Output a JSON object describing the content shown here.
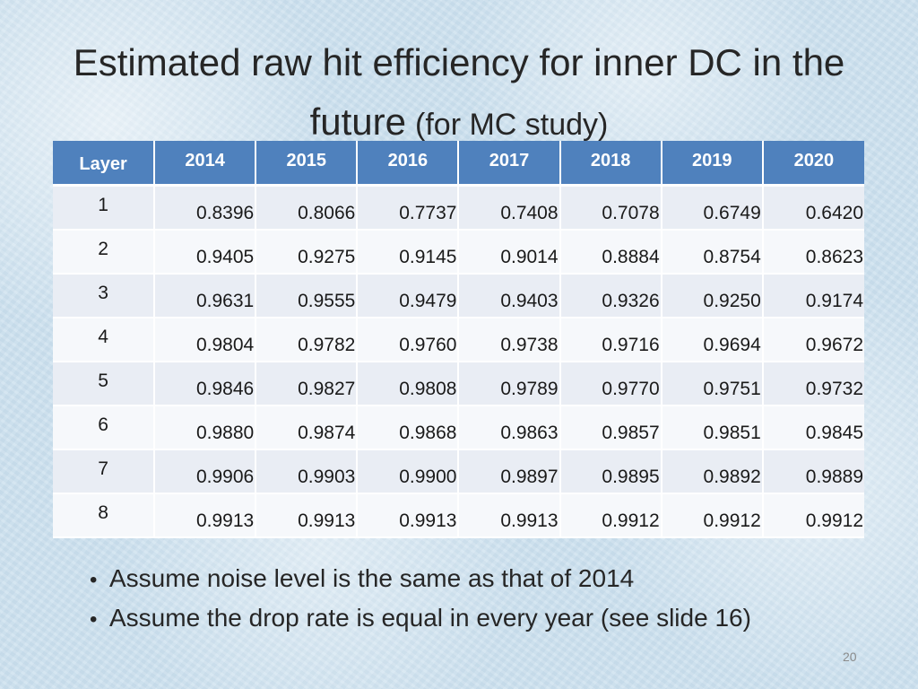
{
  "slide": {
    "title_main": "Estimated raw hit efficiency for inner DC in the future",
    "title_sub": "(for MC study)",
    "page_number": "20"
  },
  "table": {
    "header": [
      "Layer",
      "2014",
      "2015",
      "2016",
      "2017",
      "2018",
      "2019",
      "2020"
    ],
    "rows": [
      [
        "1",
        "0.8396",
        "0.8066",
        "0.7737",
        "0.7408",
        "0.7078",
        "0.6749",
        "0.6420"
      ],
      [
        "2",
        "0.9405",
        "0.9275",
        "0.9145",
        "0.9014",
        "0.8884",
        "0.8754",
        "0.8623"
      ],
      [
        "3",
        "0.9631",
        "0.9555",
        "0.9479",
        "0.9403",
        "0.9326",
        "0.9250",
        "0.9174"
      ],
      [
        "4",
        "0.9804",
        "0.9782",
        "0.9760",
        "0.9738",
        "0.9716",
        "0.9694",
        "0.9672"
      ],
      [
        "5",
        "0.9846",
        "0.9827",
        "0.9808",
        "0.9789",
        "0.9770",
        "0.9751",
        "0.9732"
      ],
      [
        "6",
        "0.9880",
        "0.9874",
        "0.9868",
        "0.9863",
        "0.9857",
        "0.9851",
        "0.9845"
      ],
      [
        "7",
        "0.9906",
        "0.9903",
        "0.9900",
        "0.9897",
        "0.9895",
        "0.9892",
        "0.9889"
      ],
      [
        "8",
        "0.9913",
        "0.9913",
        "0.9913",
        "0.9913",
        "0.9912",
        "0.9912",
        "0.9912"
      ]
    ]
  },
  "bullets": [
    "Assume noise level is the same as that of 2014",
    "Assume the drop rate is equal in every year (see slide 16)"
  ],
  "colors": {
    "header_bg": "#4f81bd",
    "row_odd": "#e9edf4",
    "row_even": "#f6f8fb",
    "background": "#cfe2ef"
  }
}
